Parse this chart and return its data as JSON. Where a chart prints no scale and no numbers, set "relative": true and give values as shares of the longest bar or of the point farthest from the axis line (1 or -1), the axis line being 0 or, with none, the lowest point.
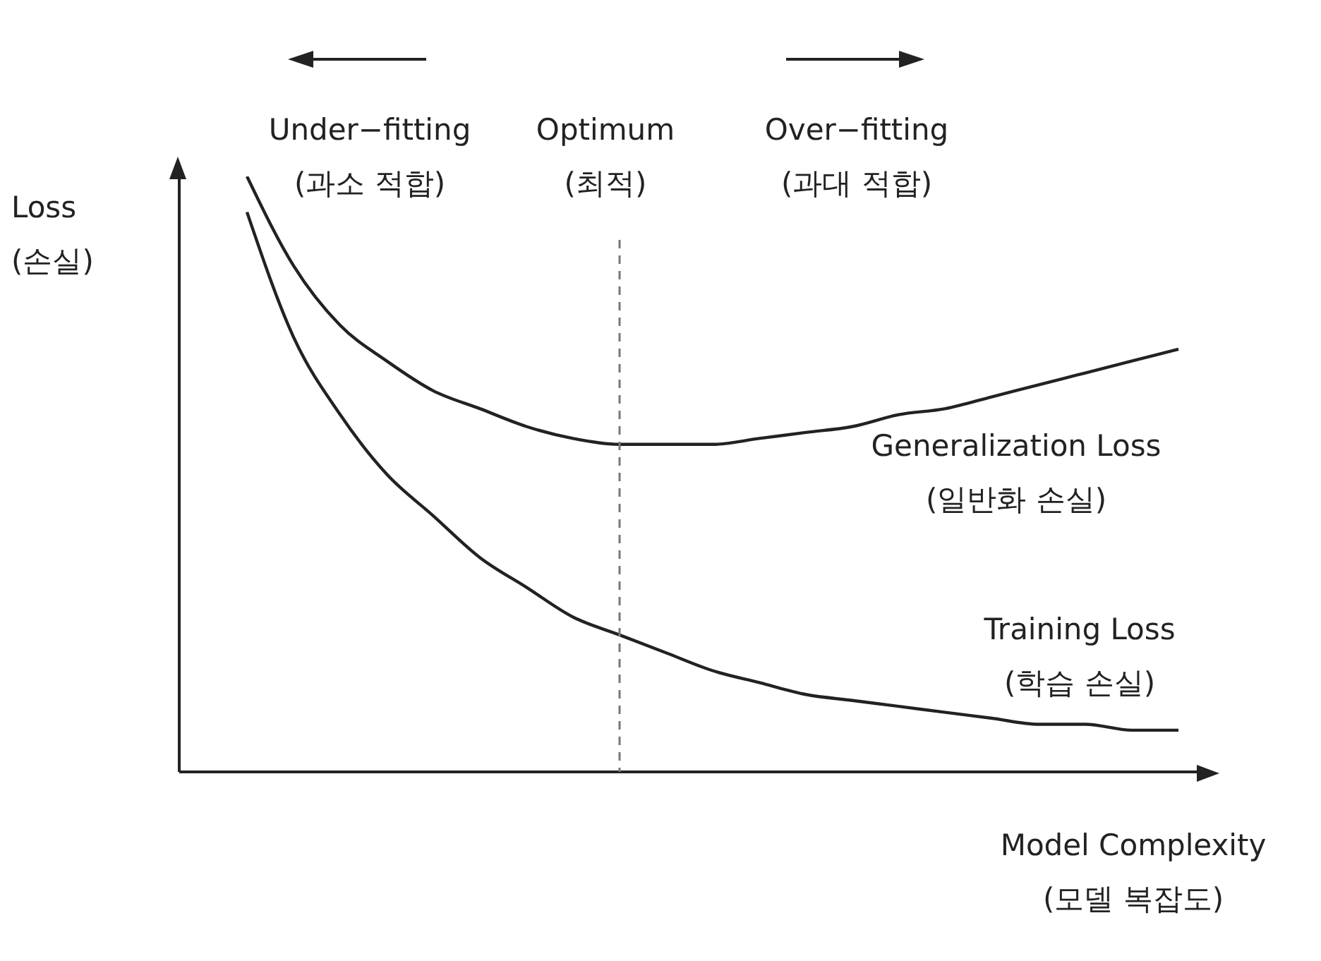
{
  "chart_data": {
    "type": "line",
    "relative": true,
    "xlabel": "Model Complexity\n(모델 복잡도)",
    "ylabel": "Loss\n(손실)",
    "categories": [
      null,
      null,
      null,
      null,
      null,
      null,
      null,
      null,
      null,
      null,
      null,
      null,
      null,
      null,
      null,
      null,
      null,
      null,
      null,
      null,
      null
    ],
    "series": [
      {
        "name": "Generalization Loss\n(일반화 손실)",
        "color": "#222222",
        "values": [
          1.0,
          0.85,
          0.75,
          0.69,
          0.64,
          0.61,
          0.58,
          0.56,
          0.55,
          0.55,
          0.55,
          0.56,
          0.57,
          0.58,
          0.6,
          0.61,
          0.63,
          0.65,
          0.67,
          0.69,
          0.71
        ]
      },
      {
        "name": "Training Loss\n(학습 손실)",
        "color": "#222222",
        "values": [
          0.94,
          0.73,
          0.6,
          0.5,
          0.43,
          0.36,
          0.31,
          0.26,
          0.23,
          0.2,
          0.17,
          0.15,
          0.13,
          0.12,
          0.11,
          0.1,
          0.09,
          0.08,
          0.08,
          0.07,
          0.07
        ]
      }
    ],
    "annotations": [
      "Under−fitting\n(과소 적합)",
      "Over−fitting\n(과대 적합)",
      "Optimum\n(최적)"
    ],
    "marker": "none",
    "line_style": "solid"
  }
}
